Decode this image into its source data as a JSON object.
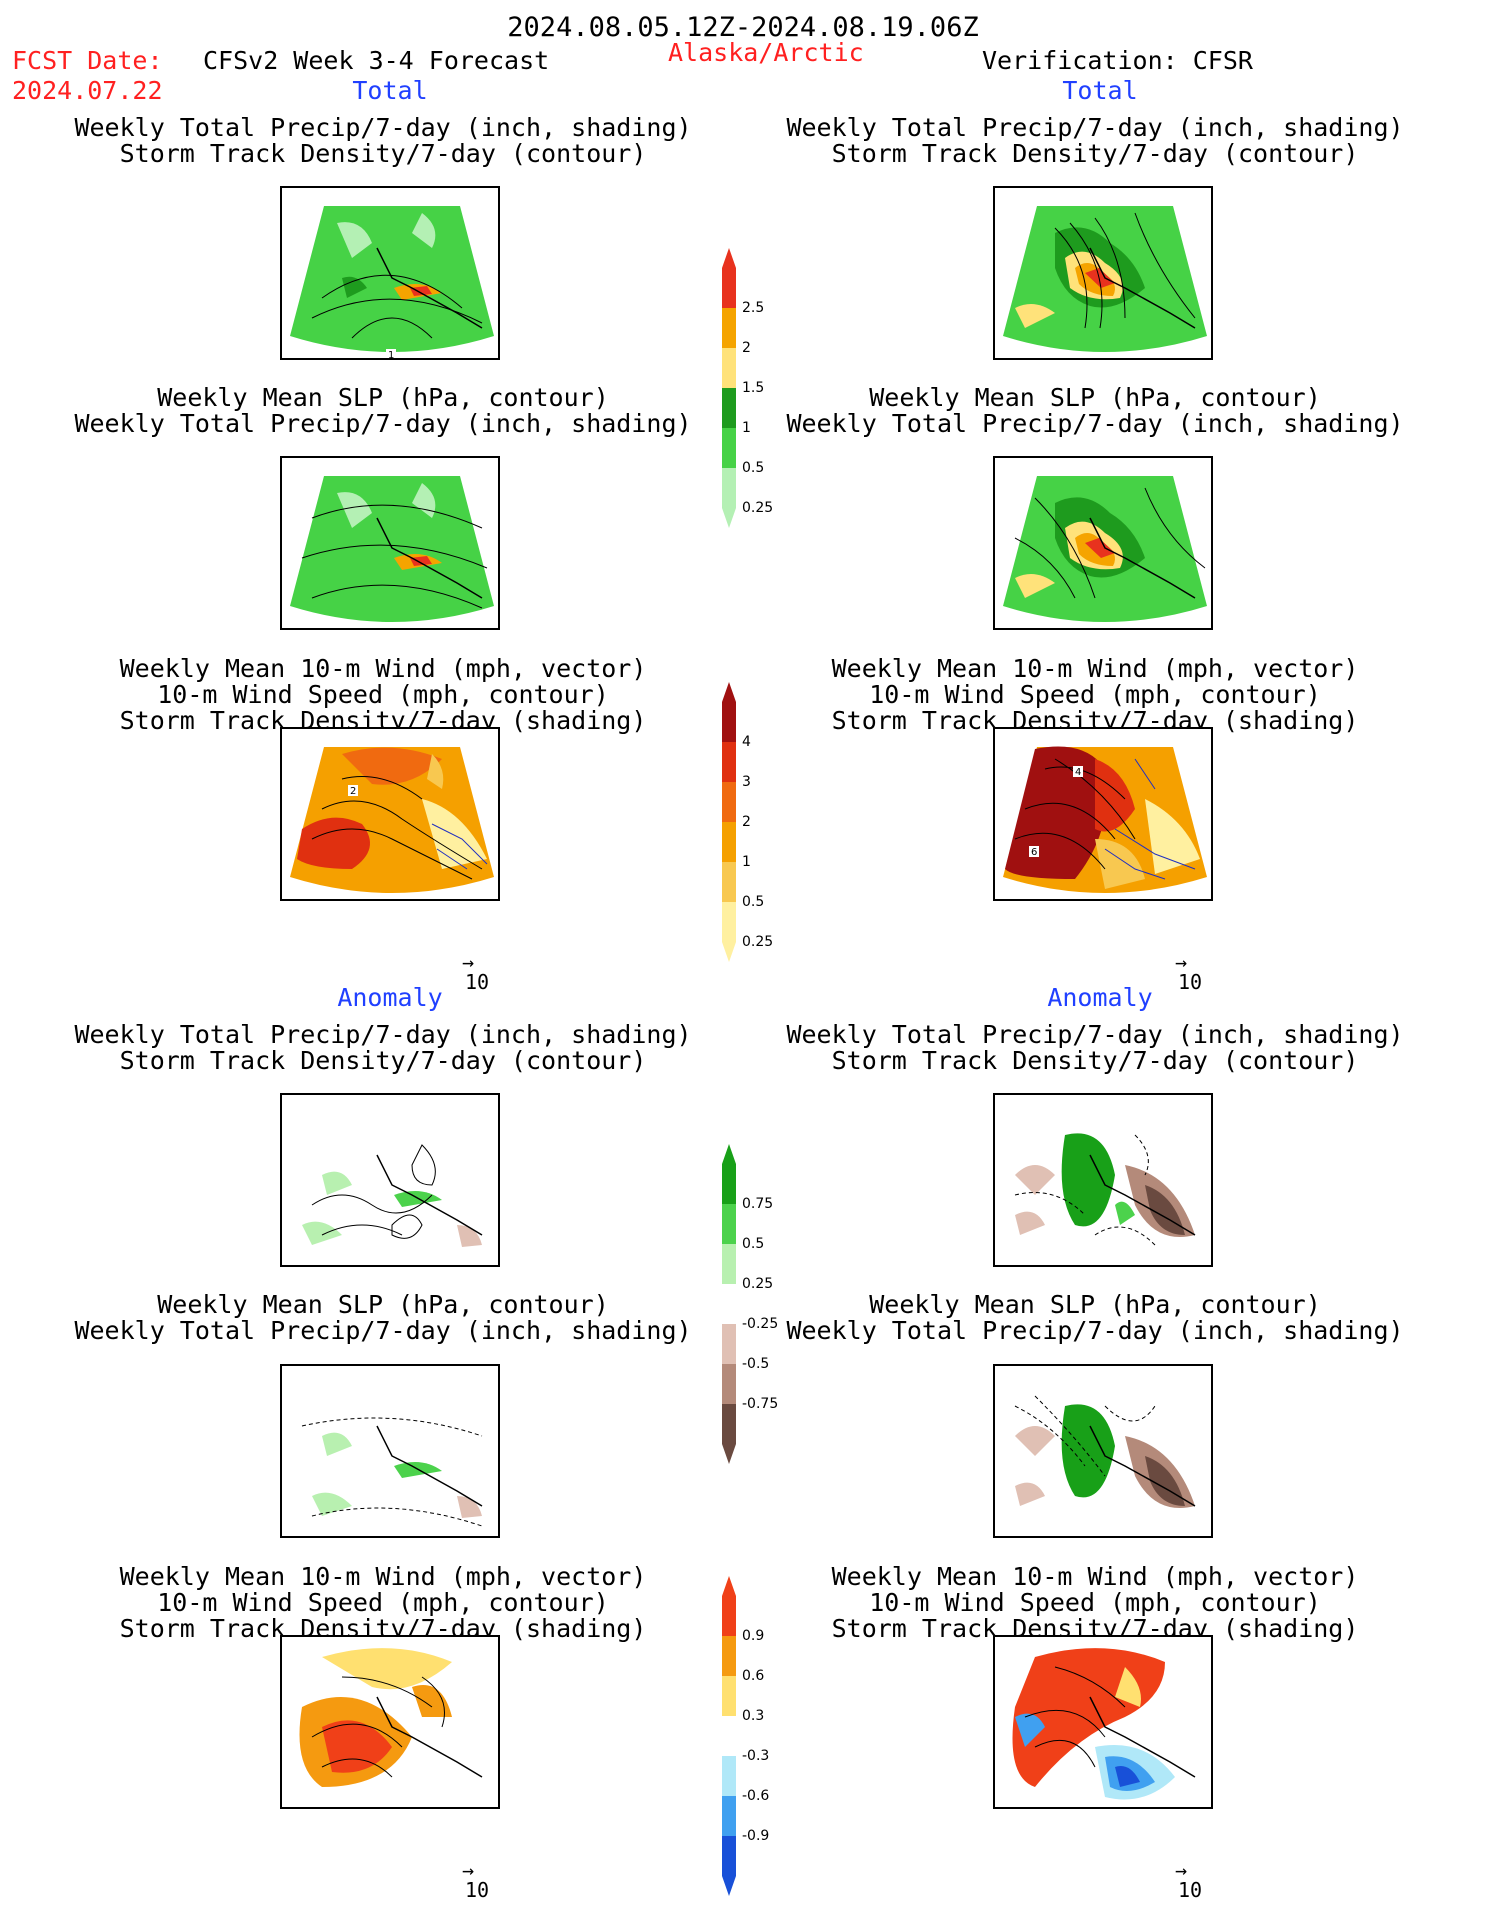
{
  "header": {
    "date_range": "2024.08.05.12Z-2024.08.19.06Z",
    "fcst_label": "FCST Date:",
    "fcst_date": "2024.07.22",
    "forecast_title": "CFSv2 Week 3-4 Forecast",
    "region": "Alaska/Arctic",
    "verification": "Verification: CFSR"
  },
  "sections": {
    "total": "Total",
    "anomaly": "Anomaly"
  },
  "titles": {
    "precip_storm": [
      "Weekly Total Precip/7-day (inch, shading)",
      "Storm Track Density/7-day (contour)"
    ],
    "slp_precip": [
      "Weekly Mean SLP (hPa, contour)",
      "Weekly Total Precip/7-day (inch, shading)"
    ],
    "wind": [
      "Weekly Mean 10-m Wind (mph, vector)",
      "10-m Wind Speed (mph, contour)",
      "Storm Track Density/7-day (shading)"
    ]
  },
  "vector_ref": "10",
  "panel_labels": {
    "tl_precip_contour": "1",
    "tl_wind_contour": "2",
    "tr_wind_contour_a": "4",
    "tr_wind_contour_b": "6"
  },
  "colorbars": {
    "precip_total": {
      "labels": [
        "2.5",
        "2",
        "1.5",
        "1",
        "0.5",
        "0.25"
      ],
      "colors": [
        "#e8321e",
        "#f5a400",
        "#ffe27a",
        "#1e9b1e",
        "#46d246",
        "#b4f0b4"
      ]
    },
    "storm_total": {
      "labels": [
        "4",
        "3",
        "2",
        "1",
        "0.5",
        "0.25"
      ],
      "colors": [
        "#a01010",
        "#e03010",
        "#f06a10",
        "#f5a000",
        "#f8c850",
        "#fff0a0"
      ]
    },
    "precip_anom": {
      "labels": [
        "0.75",
        "0.5",
        "0.25",
        "-0.25",
        "-0.5",
        "-0.75"
      ],
      "colors": [
        "#18a018",
        "#4cd24c",
        "#b8f0b0",
        "#ffffff",
        "#e0c0b4",
        "#b48a7a",
        "#6a4a40"
      ]
    },
    "wind_anom": {
      "labels": [
        "0.9",
        "0.6",
        "0.3",
        "-0.3",
        "-0.6",
        "-0.9"
      ],
      "colors": [
        "#f04018",
        "#f59a10",
        "#ffe070",
        "#ffffff",
        "#b0e8f8",
        "#40a0f0",
        "#1850d8"
      ]
    }
  },
  "colors": {
    "header_red": "#ff2020",
    "section_blue": "#2040ff"
  }
}
